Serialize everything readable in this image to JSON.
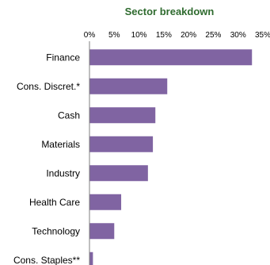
{
  "chart_data": {
    "type": "bar",
    "orientation": "horizontal",
    "title": "Sector breakdown",
    "xlabel": "",
    "ylabel": "",
    "xlim": [
      0,
      35
    ],
    "ticks": [
      "0%",
      "5%",
      "10%",
      "15%",
      "20%",
      "25%",
      "30%",
      "35%"
    ],
    "tick_values": [
      0,
      5,
      10,
      15,
      20,
      25,
      30,
      35
    ],
    "categories": [
      "Finance",
      "Cons. Discret.*",
      "Cash",
      "Materials",
      "Industry",
      "Health Care",
      "Technology",
      "Cons. Staples**"
    ],
    "values": [
      32.8,
      15.7,
      13.3,
      12.8,
      11.8,
      6.4,
      5.0,
      0.7
    ],
    "bar_color": "#8064a2",
    "title_color": "#2f6b2f",
    "grid": false,
    "legend": "none"
  }
}
